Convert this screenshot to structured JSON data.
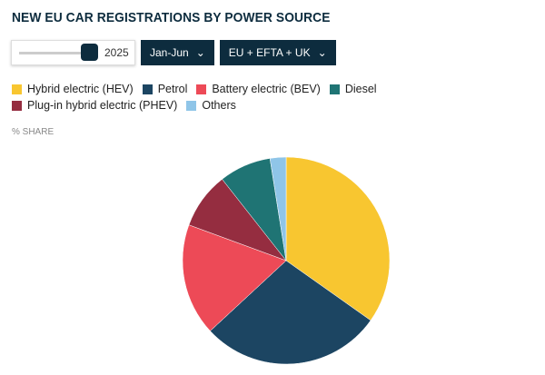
{
  "title": "NEW EU CAR REGISTRATIONS BY POWER SOURCE",
  "controls": {
    "year": "2025",
    "year_slider_level": 1.0,
    "period": "Jan-Jun",
    "region": "EU + EFTA + UK"
  },
  "chart_data": {
    "type": "pie",
    "unit_label": "% SHARE",
    "legend_position": "top",
    "categories": [
      "Hybrid electric (HEV)",
      "Petrol",
      "Battery electric (BEV)",
      "Diesel",
      "Plug-in hybrid electric (PHEV)",
      "Others"
    ],
    "values": [
      34.8,
      28.3,
      17.5,
      8.1,
      8.8,
      2.5
    ],
    "colors": [
      "#f8c630",
      "#1c4562",
      "#ed4a57",
      "#1f7474",
      "#952d40",
      "#8fc5e8"
    ],
    "slice_order": [
      "Hybrid electric (HEV)",
      "Petrol",
      "Battery electric (BEV)",
      "Plug-in hybrid electric (PHEV)",
      "Diesel",
      "Others"
    ]
  }
}
